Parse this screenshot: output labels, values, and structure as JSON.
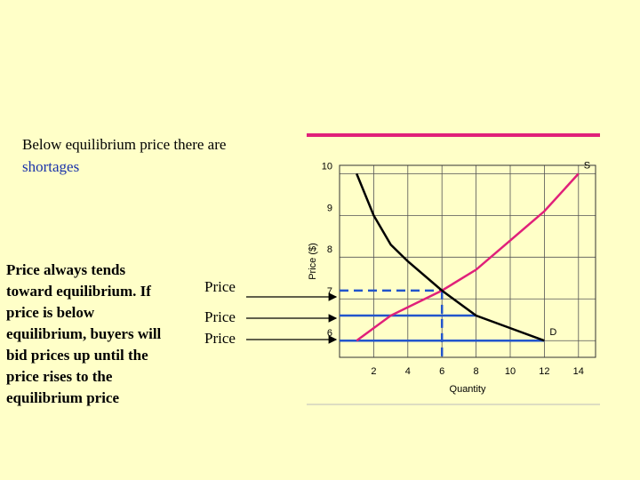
{
  "heading": {
    "text": "Below equilibrium price there are",
    "highlight": "shortages"
  },
  "body": "Price always tends toward equilibrium. If price is below equilibrium, buyers will bid prices up until the price rises to the equilibrium price",
  "arrow_labels": [
    "Price",
    "Price",
    "Price"
  ],
  "chart_data": {
    "type": "line",
    "x_label": "Quantity",
    "y_label": "Price ($)",
    "xlim": [
      0,
      15
    ],
    "ylim": [
      5.6,
      10.2
    ],
    "xticks": [
      2,
      4,
      6,
      8,
      10,
      12,
      14
    ],
    "yticks": [
      6,
      7,
      8,
      9,
      10
    ],
    "grid": true,
    "series": [
      {
        "name": "S",
        "color": "#e0207a",
        "x": [
          1,
          3,
          6,
          8,
          10,
          12,
          14
        ],
        "values": [
          6,
          6.6,
          7.2,
          7.7,
          8.4,
          9.1,
          10
        ]
      },
      {
        "name": "D",
        "color": "#000000",
        "x": [
          1,
          2,
          3,
          4,
          6,
          8,
          10,
          12
        ],
        "values": [
          10,
          9,
          8.3,
          7.9,
          7.2,
          6.6,
          6.3,
          6
        ]
      }
    ],
    "guide_color": "#2255cc",
    "equilibrium": {
      "x": 6,
      "y": 7.2
    },
    "price_lines": [
      {
        "x": 8,
        "y": 6.6
      },
      {
        "x": 12,
        "y": 6
      }
    ]
  }
}
